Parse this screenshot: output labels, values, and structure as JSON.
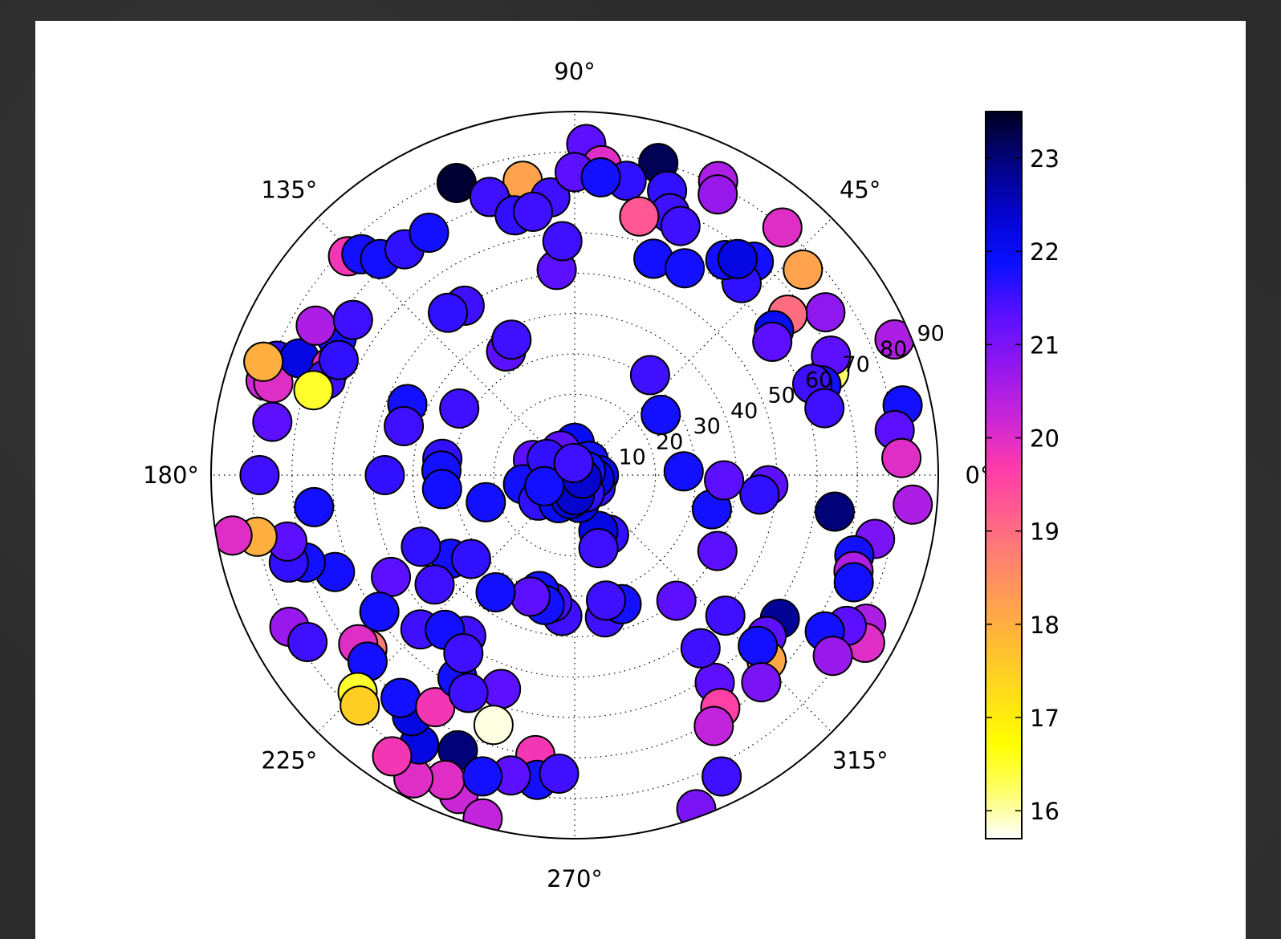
{
  "chart_data": {
    "type": "scatter",
    "subtype": "polar",
    "theta_ticks": [
      "0°",
      "45°",
      "90°",
      "135°",
      "180°",
      "225°",
      "270°",
      "315°"
    ],
    "r_ticks": [
      "10",
      "20",
      "30",
      "40",
      "50",
      "60",
      "70",
      "80",
      "90"
    ],
    "rlim": [
      0,
      90
    ],
    "grid": true,
    "colorbar": {
      "colormap": "gnuplot2_r",
      "range": [
        15.7,
        23.5
      ],
      "ticks": [
        "16",
        "17",
        "18",
        "19",
        "20",
        "21",
        "22",
        "23"
      ]
    },
    "points": [
      {
        "theta": 88,
        "r": 82,
        "c": 21.3
      },
      {
        "theta": 85,
        "r": 77,
        "c": 20.0
      },
      {
        "theta": 75,
        "r": 80,
        "c": 23.2
      },
      {
        "theta": 100,
        "r": 74,
        "c": 18.2
      },
      {
        "theta": 112,
        "r": 78,
        "c": 23.4
      },
      {
        "theta": 95,
        "r": 69,
        "c": 21.5
      },
      {
        "theta": 90,
        "r": 75,
        "c": 21.3
      },
      {
        "theta": 80,
        "r": 74,
        "c": 21.6
      },
      {
        "theta": 72,
        "r": 74,
        "c": 21.6
      },
      {
        "theta": 64,
        "r": 81,
        "c": 20.5
      },
      {
        "theta": 63,
        "r": 78,
        "c": 20.7
      },
      {
        "theta": 70,
        "r": 69,
        "c": 21.5
      },
      {
        "theta": 76,
        "r": 66,
        "c": 19.3
      },
      {
        "theta": 67,
        "r": 67,
        "c": 21.5
      },
      {
        "theta": 70,
        "r": 57,
        "c": 21.8
      },
      {
        "theta": 62,
        "r": 58,
        "c": 21.8
      },
      {
        "theta": 85,
        "r": 74,
        "c": 21.8
      },
      {
        "theta": 50,
        "r": 80,
        "c": 20.0
      },
      {
        "theta": 50,
        "r": 69,
        "c": 21.8
      },
      {
        "theta": 49,
        "r": 63,
        "c": 21.6
      },
      {
        "theta": 55,
        "r": 65,
        "c": 21.8
      },
      {
        "theta": 53,
        "r": 67,
        "c": 22.2
      },
      {
        "theta": 42,
        "r": 76,
        "c": 18.2
      },
      {
        "theta": 33,
        "r": 74,
        "c": 20.8
      },
      {
        "theta": 37,
        "r": 66,
        "c": 19.0
      },
      {
        "theta": 36,
        "r": 61,
        "c": 22.0
      },
      {
        "theta": 34,
        "r": 59,
        "c": 21.3
      },
      {
        "theta": 23,
        "r": 86,
        "c": 20.5
      },
      {
        "theta": 22,
        "r": 68,
        "c": 16.2
      },
      {
        "theta": 25,
        "r": 70,
        "c": 21.3
      },
      {
        "theta": 20,
        "r": 65,
        "c": 21.8
      },
      {
        "theta": 21,
        "r": 63,
        "c": 21.5
      },
      {
        "theta": 15,
        "r": 64,
        "c": 21.5
      },
      {
        "theta": 12,
        "r": 83,
        "c": 21.8
      },
      {
        "theta": 8,
        "r": 80,
        "c": 21.3
      },
      {
        "theta": 3,
        "r": 81,
        "c": 20.0
      },
      {
        "theta": -5,
        "r": 84,
        "c": 20.5
      },
      {
        "theta": -12,
        "r": 76,
        "c": 21.0
      },
      {
        "theta": -8,
        "r": 65,
        "c": 23.0
      },
      {
        "theta": -16,
        "r": 72,
        "c": 21.8
      },
      {
        "theta": -19,
        "r": 73,
        "c": 20.5
      },
      {
        "theta": -21,
        "r": 74,
        "c": 21.8
      },
      {
        "theta": -27,
        "r": 81,
        "c": 20.5
      },
      {
        "theta": -30,
        "r": 83,
        "c": 20.0
      },
      {
        "theta": -29,
        "r": 77,
        "c": 21.3
      },
      {
        "theta": -32,
        "r": 73,
        "c": 21.8
      },
      {
        "theta": -35,
        "r": 78,
        "c": 20.7
      },
      {
        "theta": -35,
        "r": 62,
        "c": 22.8
      },
      {
        "theta": -40,
        "r": 62,
        "c": 21.3
      },
      {
        "theta": -44,
        "r": 66,
        "c": 18.1
      },
      {
        "theta": -43,
        "r": 62,
        "c": 21.8
      },
      {
        "theta": -48,
        "r": 69,
        "c": 21.0
      },
      {
        "theta": -3,
        "r": 48,
        "c": 21.3
      },
      {
        "theta": -6,
        "r": 46,
        "c": 21.6
      },
      {
        "theta": -14,
        "r": 35,
        "c": 21.8
      },
      {
        "theta": -28,
        "r": 40,
        "c": 21.3
      },
      {
        "theta": -43,
        "r": 51,
        "c": 21.5
      },
      {
        "theta": -56,
        "r": 62,
        "c": 21.3
      },
      {
        "theta": -58,
        "r": 68,
        "c": 19.6
      },
      {
        "theta": -61,
        "r": 71,
        "c": 20.3
      },
      {
        "theta": -54,
        "r": 53,
        "c": 21.5
      },
      {
        "theta": -64,
        "r": 83,
        "c": 21.5
      },
      {
        "theta": -70,
        "r": 88,
        "c": 21.0
      },
      {
        "theta": -51,
        "r": 40,
        "c": 21.3
      },
      {
        "theta": 2,
        "r": 27,
        "c": 21.8
      },
      {
        "theta": -2,
        "r": 37,
        "c": 21.3
      },
      {
        "theta": 35,
        "r": 26,
        "c": 21.8
      },
      {
        "theta": 53,
        "r": 31,
        "c": 21.5
      },
      {
        "theta": -78,
        "r": 36,
        "c": 21.5
      },
      {
        "theta": -70,
        "r": 34,
        "c": 21.8
      },
      {
        "theta": -76,
        "r": 32,
        "c": 21.5
      },
      {
        "theta": -60,
        "r": 17,
        "c": 21.6
      },
      {
        "theta": -67,
        "r": 15,
        "c": 22.2
      },
      {
        "theta": -72,
        "r": 19,
        "c": 21.5
      },
      {
        "theta": -95,
        "r": 35,
        "c": 21.5
      },
      {
        "theta": -100,
        "r": 32,
        "c": 21.5
      },
      {
        "theta": -107,
        "r": 30,
        "c": 21.8
      },
      {
        "theta": -103,
        "r": 33,
        "c": 21.8
      },
      {
        "theta": -110,
        "r": 32,
        "c": 21.3
      },
      {
        "theta": -124,
        "r": 35,
        "c": 21.8
      },
      {
        "theta": -146,
        "r": 37,
        "c": 21.8
      },
      {
        "theta": -142,
        "r": 44,
        "c": 21.5
      },
      {
        "theta": -135,
        "r": 54,
        "c": 21.5
      },
      {
        "theta": -141,
        "r": 33,
        "c": 21.6
      },
      {
        "theta": -109,
        "r": 56,
        "c": 21.3
      },
      {
        "theta": -98,
        "r": 70,
        "c": 19.8
      },
      {
        "theta": -108,
        "r": 65,
        "c": 15.8
      },
      {
        "theta": -113,
        "r": 74,
        "c": 23.0
      },
      {
        "theta": -110,
        "r": 84,
        "c": 20.2
      },
      {
        "theta": -105,
        "r": 88,
        "c": 20.3
      },
      {
        "theta": -113,
        "r": 82,
        "c": 20.0
      },
      {
        "theta": -118,
        "r": 85,
        "c": 20.0
      },
      {
        "theta": -120,
        "r": 77,
        "c": 22.2
      },
      {
        "theta": -124,
        "r": 72,
        "c": 22.2
      },
      {
        "theta": -128,
        "r": 70,
        "c": 21.8
      },
      {
        "theta": -121,
        "r": 67,
        "c": 19.8
      },
      {
        "theta": -97,
        "r": 76,
        "c": 21.8
      },
      {
        "theta": -93,
        "r": 74,
        "c": 21.5
      },
      {
        "theta": -102,
        "r": 76,
        "c": 21.3
      },
      {
        "theta": -107,
        "r": 78,
        "c": 21.8
      },
      {
        "theta": -123,
        "r": 83,
        "c": 19.8
      },
      {
        "theta": -140,
        "r": 67,
        "c": 18.8
      },
      {
        "theta": -142,
        "r": 68,
        "c": 20.0
      },
      {
        "theta": -138,
        "r": 69,
        "c": 21.8
      },
      {
        "theta": -135,
        "r": 76,
        "c": 16.5
      },
      {
        "theta": -133,
        "r": 78,
        "c": 17.5
      },
      {
        "theta": -152,
        "r": 80,
        "c": 20.7
      },
      {
        "theta": -148,
        "r": 78,
        "c": 21.5
      },
      {
        "theta": -158,
        "r": 64,
        "c": 21.8
      },
      {
        "theta": -162,
        "r": 70,
        "c": 21.8
      },
      {
        "theta": -163,
        "r": 74,
        "c": 21.6
      },
      {
        "theta": -167,
        "r": 73,
        "c": 21.3
      },
      {
        "theta": -169,
        "r": 80,
        "c": 18.0
      },
      {
        "theta": -170,
        "r": 86,
        "c": 20.0
      },
      {
        "theta": -173,
        "r": 65,
        "c": 21.8
      },
      {
        "theta": -180,
        "r": 78,
        "c": 21.5
      },
      {
        "theta": 170,
        "r": 76,
        "c": 21.3
      },
      {
        "theta": 163,
        "r": 80,
        "c": 20.2
      },
      {
        "theta": 160,
        "r": 82,
        "c": 21.3
      },
      {
        "theta": 159,
        "r": 79,
        "c": 21.6
      },
      {
        "theta": 163,
        "r": 78,
        "c": 20.0
      },
      {
        "theta": 157,
        "r": 74,
        "c": 22.2
      },
      {
        "theta": 156,
        "r": 66,
        "c": 20.0
      },
      {
        "theta": 159,
        "r": 66,
        "c": 21.5
      },
      {
        "theta": 162,
        "r": 68,
        "c": 16.5
      },
      {
        "theta": 160,
        "r": 82,
        "c": 18.0
      },
      {
        "theta": 150,
        "r": 68,
        "c": 21.8
      },
      {
        "theta": 154,
        "r": 65,
        "c": 21.6
      },
      {
        "theta": 150,
        "r": 74,
        "c": 20.5
      },
      {
        "theta": 145,
        "r": 67,
        "c": 21.5
      },
      {
        "theta": 136,
        "r": 78,
        "c": 19.8
      },
      {
        "theta": 134,
        "r": 76,
        "c": 21.8
      },
      {
        "theta": 132,
        "r": 72,
        "c": 21.8
      },
      {
        "theta": 127,
        "r": 70,
        "c": 21.6
      },
      {
        "theta": 121,
        "r": 70,
        "c": 21.8
      },
      {
        "theta": 107,
        "r": 72,
        "c": 21.5
      },
      {
        "theta": 103,
        "r": 66,
        "c": 21.6
      },
      {
        "theta": 99,
        "r": 66,
        "c": 21.5
      },
      {
        "theta": 95,
        "r": 51,
        "c": 21.3
      },
      {
        "theta": 93,
        "r": 58,
        "c": 21.5
      },
      {
        "theta": 123,
        "r": 50,
        "c": 21.5
      },
      {
        "theta": 128,
        "r": 51,
        "c": 21.6
      },
      {
        "theta": 119,
        "r": 35,
        "c": 21.3
      },
      {
        "theta": 115,
        "r": 37,
        "c": 21.5
      },
      {
        "theta": 157,
        "r": 45,
        "c": 21.8
      },
      {
        "theta": 150,
        "r": 33,
        "c": 21.5
      },
      {
        "theta": 164,
        "r": 44,
        "c": 21.5
      },
      {
        "theta": 180,
        "r": 47,
        "c": 21.6
      },
      {
        "theta": 173,
        "r": 33,
        "c": 21.6
      },
      {
        "theta": 178,
        "r": 33,
        "c": 21.8
      },
      {
        "theta": 186,
        "r": 33,
        "c": 21.8
      },
      {
        "theta": 197,
        "r": 23,
        "c": 21.8
      },
      {
        "theta": -124,
        "r": 48,
        "c": 21.5
      },
      {
        "theta": -155,
        "r": 42,
        "c": 21.6
      },
      {
        "theta": -151,
        "r": 52,
        "c": 21.3
      },
      {
        "theta": -145,
        "r": 59,
        "c": 21.8
      },
      {
        "theta": -130,
        "r": 50,
        "c": 21.8
      },
      {
        "theta": -120,
        "r": 58,
        "c": 21.8
      },
      {
        "theta": -122,
        "r": 52,
        "c": 21.5
      },
      {
        "theta": -116,
        "r": 60,
        "c": 21.5
      },
      {
        "theta": 90,
        "r": 8,
        "c": 22.0
      },
      {
        "theta": 45,
        "r": 5,
        "c": 21.8
      },
      {
        "theta": 0,
        "r": 6,
        "c": 22.0
      },
      {
        "theta": -30,
        "r": 6,
        "c": 21.6
      },
      {
        "theta": -10,
        "r": 5,
        "c": 22.2
      },
      {
        "theta": 135,
        "r": 4,
        "c": 21.8
      },
      {
        "theta": 180,
        "r": 3,
        "c": 21.5
      },
      {
        "theta": -100,
        "r": 4,
        "c": 21.3
      },
      {
        "theta": -120,
        "r": 7,
        "c": 21.6
      },
      {
        "theta": -80,
        "r": 7,
        "c": 22.2
      },
      {
        "theta": -60,
        "r": 5,
        "c": 21.6
      },
      {
        "theta": 160,
        "r": 11,
        "c": 21.3
      },
      {
        "theta": 190,
        "r": 13,
        "c": 21.8
      },
      {
        "theta": 215,
        "r": 11,
        "c": 21.6
      },
      {
        "theta": 240,
        "r": 8,
        "c": 22.0
      },
      {
        "theta": 260,
        "r": 6,
        "c": 22.2
      },
      {
        "theta": -90,
        "r": 5,
        "c": 22.4
      },
      {
        "theta": 120,
        "r": 7,
        "c": 21.3
      },
      {
        "theta": 20,
        "r": 3,
        "c": 21.8
      },
      {
        "theta": -25,
        "r": 2,
        "c": 22.4
      },
      {
        "theta": 150,
        "r": 8,
        "c": 21.6
      },
      {
        "theta": 200,
        "r": 8,
        "c": 21.8
      },
      {
        "theta": 95,
        "r": 3,
        "c": 21.5
      }
    ]
  }
}
